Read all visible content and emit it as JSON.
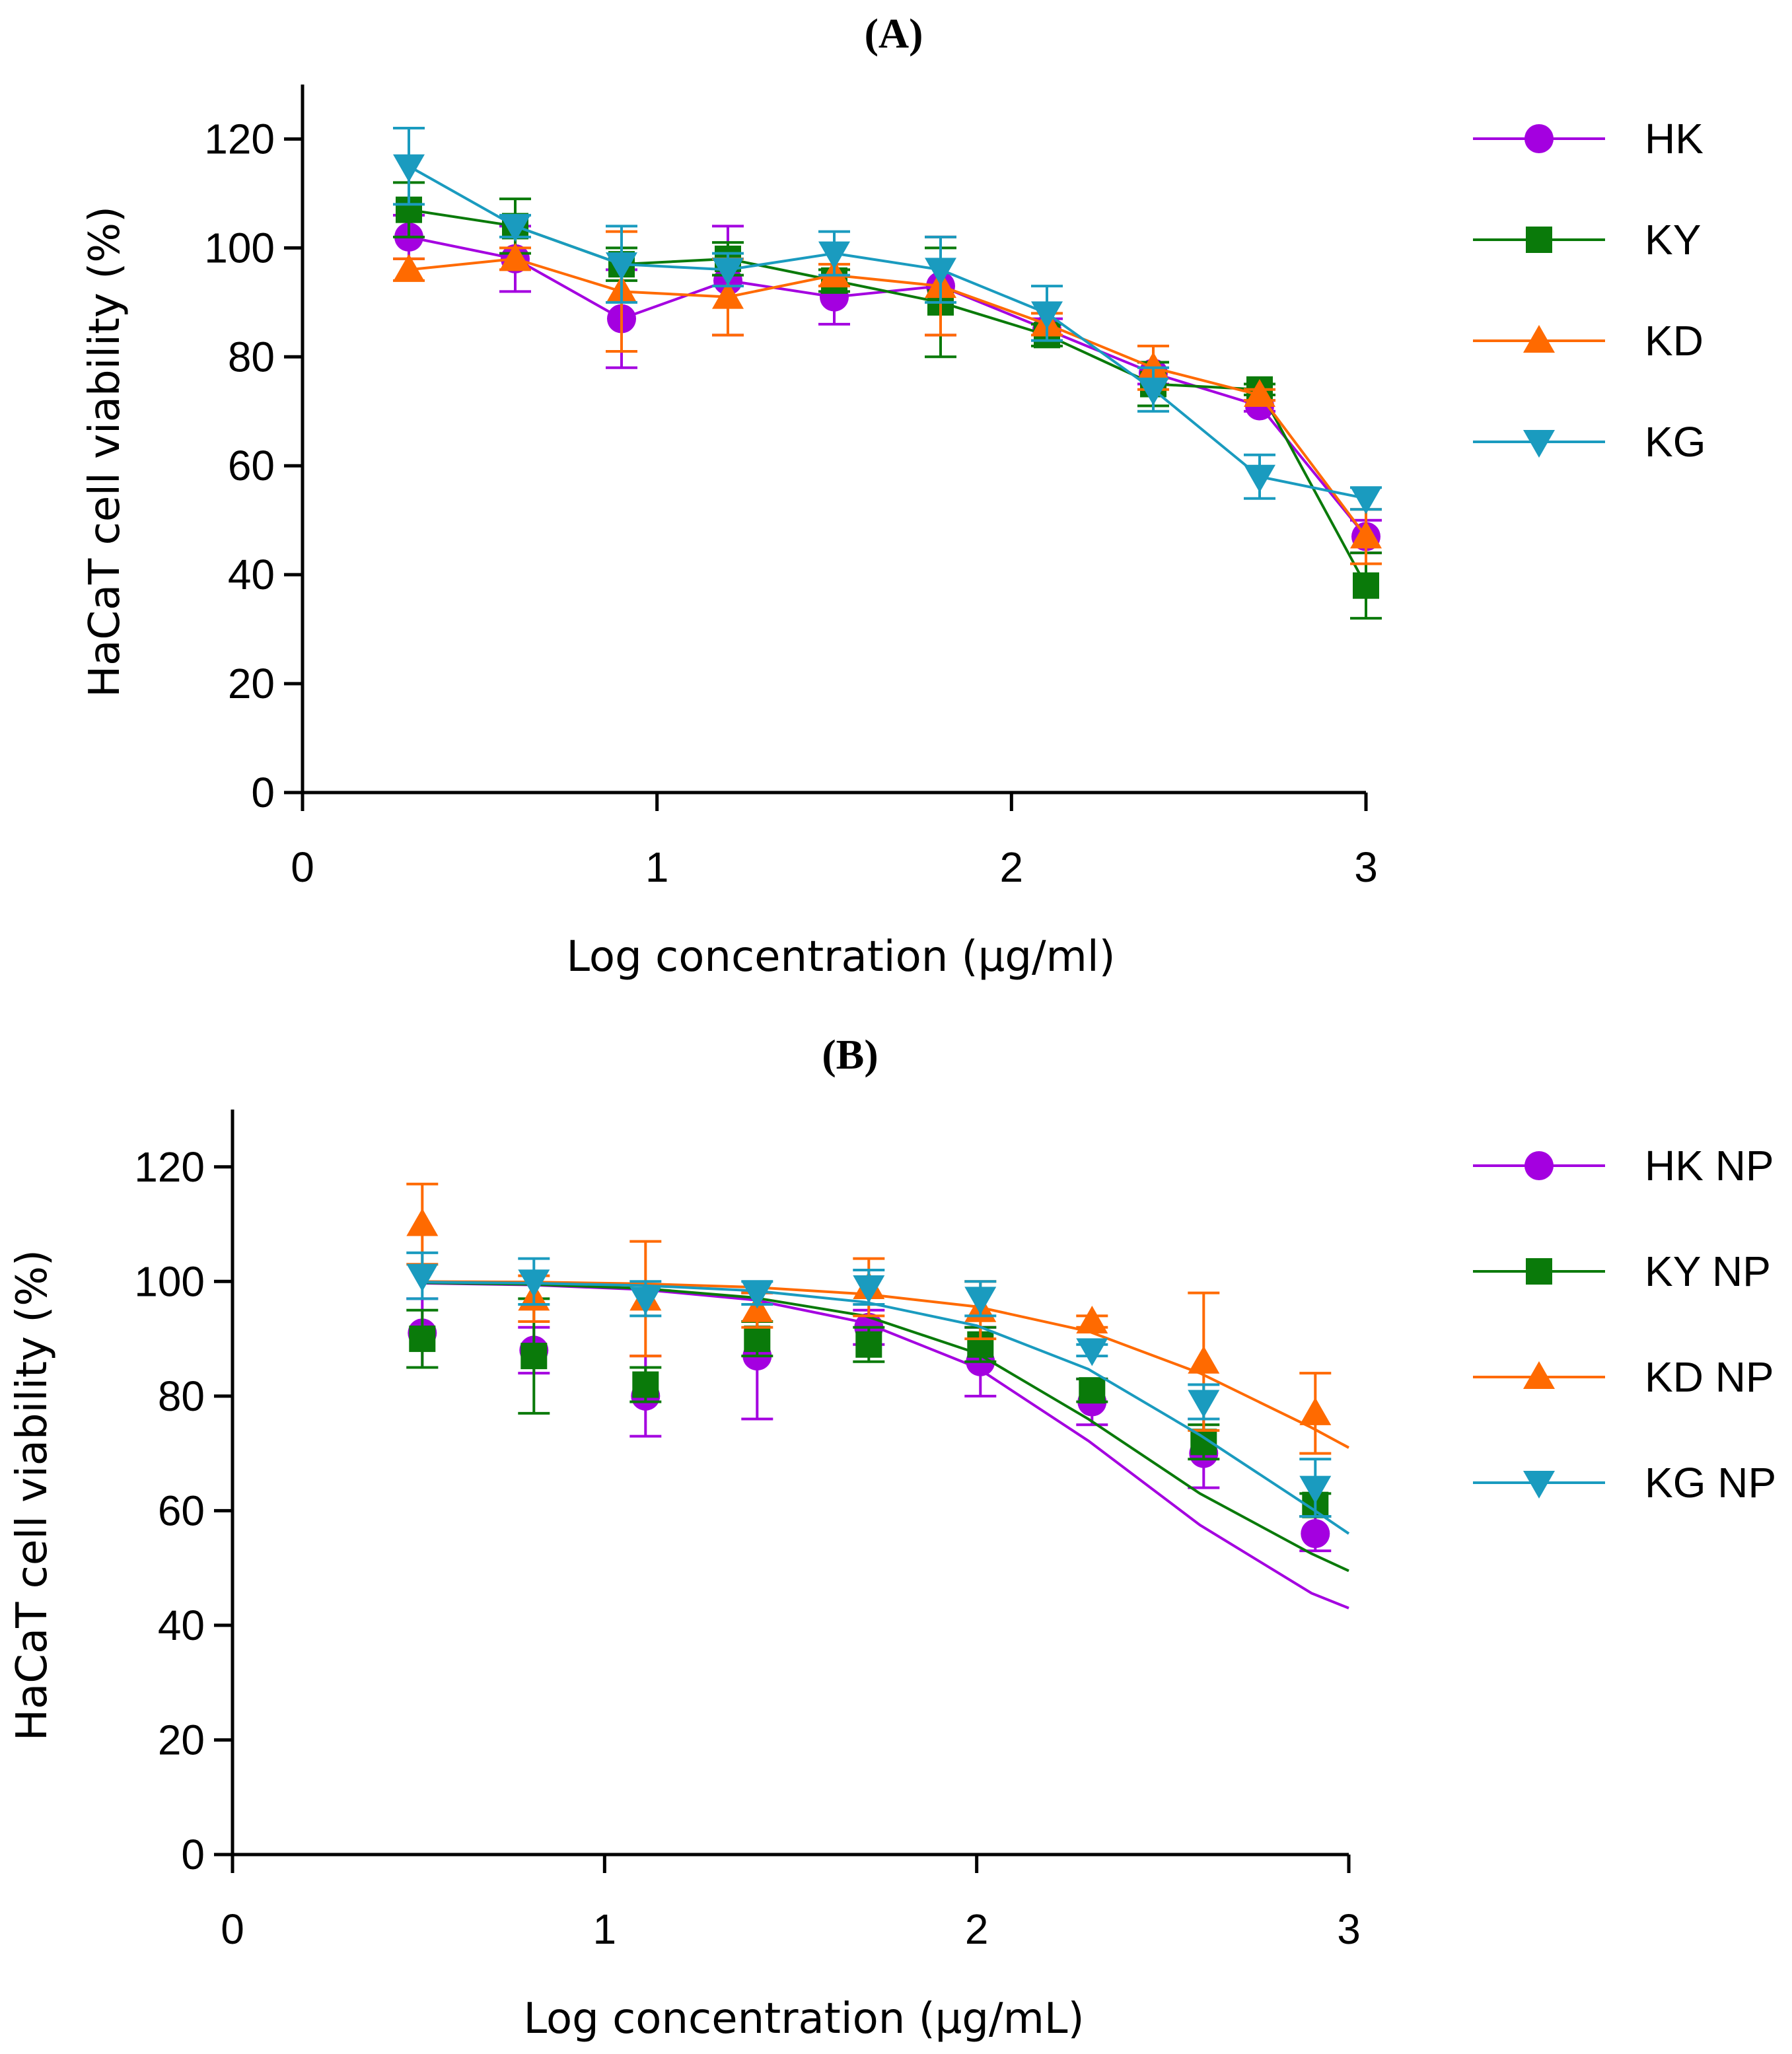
{
  "chart_data": [
    {
      "type": "line",
      "panel_label": "(A)",
      "xlabel": "Log concentration (μg/ml)",
      "ylabel": "HaCaT cell viability (%)",
      "xlim": [
        0,
        3
      ],
      "ylim": [
        0,
        130
      ],
      "xticks": [
        "0",
        "1",
        "2",
        "3"
      ],
      "yticks": [
        "0",
        "20",
        "40",
        "60",
        "80",
        "100",
        "120"
      ],
      "x": [
        0.3,
        0.6,
        0.9,
        1.2,
        1.5,
        1.8,
        2.1,
        2.4,
        2.7,
        3.0
      ],
      "legend_position": "right",
      "series": [
        {
          "name": "HK",
          "color": "#a400e0",
          "marker": "circle",
          "values": [
            102,
            98,
            87,
            94,
            91,
            93,
            85,
            77,
            71,
            47
          ],
          "errors": [
            4,
            6,
            9,
            10,
            5,
            9,
            2,
            2,
            1,
            3
          ]
        },
        {
          "name": "KY",
          "color": "#0a7a0a",
          "marker": "square",
          "values": [
            107,
            104,
            97,
            98,
            94,
            90,
            84,
            75,
            74,
            38
          ],
          "errors": [
            5,
            5,
            3,
            3,
            2,
            10,
            2,
            4,
            1,
            6
          ]
        },
        {
          "name": "KD",
          "color": "#ff6a00",
          "marker": "triangle-up",
          "values": [
            96,
            98,
            92,
            91,
            95,
            93,
            86,
            78,
            73,
            47
          ],
          "errors": [
            2,
            2,
            11,
            7,
            2,
            9,
            2,
            4,
            1,
            5
          ]
        },
        {
          "name": "KG",
          "color": "#1a9bbf",
          "marker": "triangle-down",
          "values": [
            115,
            104,
            97,
            96,
            99,
            96,
            88,
            74,
            58,
            54
          ],
          "errors": [
            7,
            2,
            7,
            3,
            4,
            6,
            5,
            4,
            4,
            2
          ]
        }
      ]
    },
    {
      "type": "line",
      "panel_label": "(B)",
      "xlabel": "Log concentration (μg/mL)",
      "ylabel": "HaCaT cell viability (%)",
      "xlim": [
        0,
        3
      ],
      "ylim": [
        0,
        130
      ],
      "xticks": [
        "0",
        "1",
        "2",
        "3"
      ],
      "yticks": [
        "0",
        "20",
        "40",
        "60",
        "80",
        "100",
        "120"
      ],
      "x": [
        0.51,
        0.81,
        1.11,
        1.41,
        1.71,
        2.01,
        2.31,
        2.61,
        2.91
      ],
      "legend_position": "right",
      "series": [
        {
          "name": "HK NP",
          "color": "#a400e0",
          "marker": "circle",
          "values": [
            91,
            88,
            80,
            87,
            92,
            86,
            79,
            70,
            56
          ],
          "errors": [
            6,
            4,
            7,
            11,
            3,
            6,
            4,
            6,
            3
          ],
          "fit_x": [
            0.5,
            0.8,
            1.1,
            1.4,
            1.7,
            2.0,
            2.3,
            2.6,
            2.9,
            3.0
          ],
          "fit_y": [
            99.7,
            99.4,
            98.6,
            96.8,
            92.8,
            85.0,
            72.2,
            57.5,
            45.6,
            43.0
          ]
        },
        {
          "name": "KY NP",
          "color": "#0a7a0a",
          "marker": "square",
          "values": [
            90,
            87,
            82,
            90,
            89,
            89,
            81,
            72,
            61
          ],
          "errors": [
            5,
            10,
            3,
            3,
            3,
            3,
            2,
            3,
            2
          ],
          "fit_x": [
            0.5,
            0.8,
            1.1,
            1.4,
            1.7,
            2.0,
            2.3,
            2.6,
            2.9,
            3.0
          ],
          "fit_y": [
            99.8,
            99.5,
            98.8,
            97.2,
            94.0,
            87.5,
            76.0,
            63.0,
            52.5,
            49.5
          ]
        },
        {
          "name": "KD NP",
          "color": "#ff6a00",
          "marker": "triangle-up",
          "values": [
            110,
            97,
            97,
            95,
            99,
            95,
            93,
            86,
            77
          ],
          "errors": [
            7,
            4,
            10,
            3,
            5,
            5,
            1,
            12,
            7
          ],
          "fit_x": [
            0.5,
            0.8,
            1.1,
            1.4,
            1.7,
            2.0,
            2.3,
            2.6,
            2.9,
            3.0
          ],
          "fit_y": [
            100.0,
            99.9,
            99.6,
            99.0,
            97.8,
            95.6,
            91.3,
            84.0,
            74.5,
            71.0
          ]
        },
        {
          "name": "KG NP",
          "color": "#1a9bbf",
          "marker": "triangle-down",
          "values": [
            101,
            100,
            97,
            98,
            99,
            97,
            88,
            79,
            64
          ],
          "errors": [
            4,
            4,
            3,
            2,
            3,
            3,
            1,
            3,
            5
          ],
          "fit_x": [
            0.5,
            0.8,
            1.1,
            1.4,
            1.7,
            2.0,
            2.3,
            2.6,
            2.9,
            3.0
          ],
          "fit_y": [
            99.9,
            99.7,
            99.3,
            98.4,
            96.4,
            92.3,
            84.7,
            73.2,
            60.4,
            56.0
          ]
        }
      ]
    }
  ]
}
